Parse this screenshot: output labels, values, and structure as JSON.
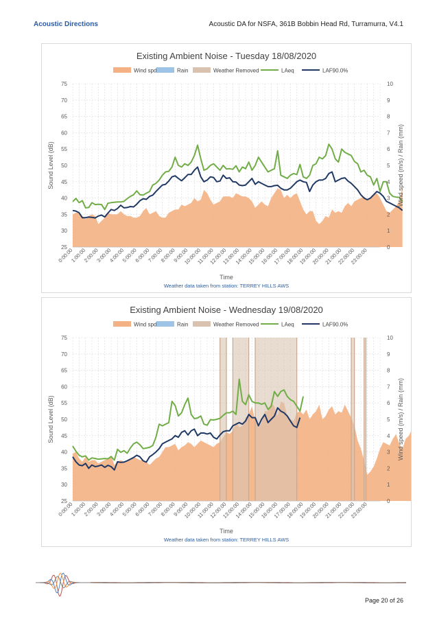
{
  "header": {
    "brand": "Acoustic Directions",
    "doc_title": "Acoustic DA for NSFA, 361B Bobbin Head Rd, Turramurra, V4.1"
  },
  "footer": {
    "page": "Page 20 of 26"
  },
  "colors": {
    "wind": "#f4b183",
    "rain": "#9dc3e6",
    "weather_removed": "#d9c3b0",
    "laeq": "#70ad47",
    "laf90": "#1f3864"
  },
  "chart_data": [
    {
      "type": "line",
      "title": "Existing Ambient Noise - Tuesday 18/08/2020",
      "xlabel": "Time",
      "ylabel": "Sound Level (dB)",
      "y2label": "Wind speed (m/s) / Rain (mm)",
      "ylim": [
        25,
        75
      ],
      "y2lim": [
        0,
        10
      ],
      "yticks": [
        "25",
        "30",
        "35",
        "40",
        "45",
        "50",
        "55",
        "60",
        "65",
        "70",
        "75"
      ],
      "y2ticks": [
        "0",
        "1",
        "2",
        "3",
        "4",
        "5",
        "6",
        "7",
        "8",
        "9",
        "10"
      ],
      "xticks": [
        "0:00:00",
        "1:00:00",
        "2:00:00",
        "3:00:00",
        "4:00:00",
        "5:00:00",
        "6:00:00",
        "7:00:00",
        "8:00:00",
        "9:00:00",
        "10:00:00",
        "11:00:00",
        "12:00:00",
        "13:00:00",
        "14:00:00",
        "15:00:00",
        "16:00:00",
        "17:00:00",
        "18:00:00",
        "19:00:00",
        "20:00:00",
        "21:00:00",
        "22:00:00",
        "23:00:00"
      ],
      "legend": [
        "Wind spd",
        "Rain",
        "Weather Removed",
        "LAeq",
        "LAF90.0%"
      ],
      "legend_position": "top",
      "grid": true,
      "note": "Weather data taken from station: TERREY HILLS AWS",
      "interval_hours": 0.25,
      "weather_removed_hours": [],
      "series": [
        {
          "name": "LAeq",
          "values": [
            38.9,
            39.9,
            38.6,
            39.2,
            37.0,
            37.1,
            38.6,
            38.0,
            38.1,
            38.0,
            36.5,
            38.4,
            38.6,
            38.7,
            38.8,
            38.8,
            39.0,
            39.8,
            40.5,
            41.0,
            42.2,
            41.0,
            40.9,
            41.5,
            42.0,
            44.0,
            44.5,
            45.5,
            47.0,
            48.0,
            48.2,
            49.5,
            52.5,
            50.0,
            49.5,
            50.5,
            50.0,
            51.0,
            53.0,
            56.2,
            52.0,
            48.5,
            49.0,
            50.0,
            50.5,
            49.5,
            48.5,
            50.0,
            48.9,
            49.0,
            48.8,
            49.9,
            48.0,
            49.5,
            49.0,
            51.0,
            48.5,
            50.0,
            52.5,
            51.0,
            49.5,
            48.0,
            48.5,
            49.0,
            54.5,
            47.0,
            46.5,
            46.0,
            47.0,
            47.5,
            47.2,
            50.3,
            46.5,
            46.0,
            47.0,
            50.0,
            50.5,
            52.5,
            52.0,
            53.0,
            56.5,
            55.0,
            52.0,
            51.0,
            55.0,
            54.0,
            53.5,
            53.0,
            51.2,
            50.5,
            48.0,
            48.5,
            47.0,
            46.5,
            44.0,
            46.0,
            42.0,
            45.0,
            45.0,
            41.5,
            40.5,
            40.3,
            40.2,
            38.9
          ]
        },
        {
          "name": "LAF90.0%",
          "values": [
            36.2,
            36.0,
            35.5,
            34.0,
            34.0,
            34.2,
            34.1,
            33.9,
            34.5,
            34.8,
            34.2,
            35.4,
            36.5,
            36.2,
            36.8,
            37.8,
            37.0,
            37.1,
            37.4,
            37.3,
            38.1,
            39.2,
            39.8,
            39.6,
            40.5,
            40.9,
            42.0,
            43.0,
            44.0,
            44.2,
            45.2,
            46.5,
            46.8,
            46.0,
            45.3,
            46.2,
            47.2,
            47.2,
            48.5,
            49.5,
            46.5,
            45.0,
            45.5,
            46.5,
            46.3,
            45.0,
            45.2,
            47.0,
            46.0,
            46.2,
            45.0,
            44.9,
            44.0,
            43.8,
            44.0,
            45.0,
            46.0,
            44.2,
            45.0,
            44.5,
            44.0,
            43.5,
            43.5,
            43.8,
            43.9,
            43.0,
            42.5,
            42.5,
            43.0,
            44.0,
            45.0,
            45.5,
            45.0,
            44.8,
            42.0,
            44.0,
            45.0,
            45.5,
            45.5,
            46.0,
            47.5,
            48.0,
            45.0,
            45.5,
            46.0,
            46.2,
            45.2,
            44.5,
            43.5,
            42.5,
            41.0,
            40.0,
            39.5,
            40.0,
            41.0,
            42.0,
            41.5,
            40.5,
            39.0,
            38.5,
            38.0,
            37.5,
            37.0,
            36.2
          ]
        },
        {
          "name": "Wind spd",
          "values": [
            2.0,
            2.1,
            2.1,
            1.9,
            1.7,
            1.9,
            2.0,
            1.9,
            1.4,
            1.6,
            1.8,
            2.1,
            2.0,
            2.0,
            2.0,
            2.2,
            2.0,
            1.9,
            1.9,
            1.8,
            1.8,
            1.9,
            2.2,
            2.4,
            2.0,
            2.1,
            2.2,
            1.9,
            1.8,
            1.8,
            2.1,
            2.2,
            2.3,
            2.3,
            2.6,
            2.5,
            2.6,
            2.7,
            3.0,
            2.8,
            2.9,
            3.5,
            3.3,
            2.9,
            2.6,
            2.7,
            2.8,
            3.1,
            3.1,
            3.1,
            3.0,
            3.3,
            3.2,
            3.1,
            3.1,
            3.0,
            2.8,
            2.4,
            2.6,
            2.8,
            2.6,
            2.5,
            3.0,
            3.3,
            3.6,
            3.5,
            3.0,
            3.2,
            3.0,
            3.2,
            3.3,
            2.8,
            2.3,
            2.0,
            2.2,
            2.2,
            1.6,
            1.4,
            1.6,
            1.9,
            1.8,
            2.3,
            2.1,
            2.2,
            2.1,
            2.5,
            2.7,
            2.5,
            2.8,
            2.9,
            3.0,
            3.1,
            2.9,
            3.0,
            3.2,
            3.3,
            3.0,
            2.6,
            2.2,
            2.1,
            2.3,
            2.5,
            2.8,
            3.7
          ]
        },
        {
          "name": "Rain",
          "values": []
        },
        {
          "name": "Weather Removed",
          "values": []
        }
      ]
    },
    {
      "type": "line",
      "title": "Existing Ambient Noise - Wednesday 19/08/2020",
      "xlabel": "Time",
      "ylabel": "Sound Level (dB)",
      "y2label": "Wind speed (m/s) / Rain (mm)",
      "ylim": [
        25,
        75
      ],
      "y2lim": [
        0,
        10
      ],
      "yticks": [
        "25",
        "30",
        "35",
        "40",
        "45",
        "50",
        "55",
        "60",
        "65",
        "70",
        "75"
      ],
      "y2ticks": [
        "0",
        "1",
        "2",
        "3",
        "4",
        "5",
        "6",
        "7",
        "8",
        "9",
        "10"
      ],
      "xticks": [
        "0:00:00",
        "1:00:00",
        "2:00:00",
        "3:00:00",
        "4:00:00",
        "5:00:00",
        "6:00:00",
        "7:00:00",
        "8:00:00",
        "9:00:00",
        "10:00:00",
        "11:00:00",
        "12:00:00",
        "13:00:00",
        "14:00:00",
        "15:00:00",
        "16:00:00",
        "17:00:00",
        "18:00:00",
        "19:00:00",
        "20:00:00",
        "21:00:00",
        "22:00:00",
        "23:00:00"
      ],
      "legend": [
        "Wind spd",
        "Rain",
        "Weather Removed",
        "LAeq",
        "LAF90.0%"
      ],
      "legend_position": "top",
      "grid": true,
      "note": "Weather data taken from station: TERREY HILLS AWS",
      "interval_hours": 0.25,
      "weather_removed_hours": [
        [
          11.5,
          12.0
        ],
        [
          12.5,
          13.75
        ],
        [
          14.25,
          17.5
        ],
        [
          21.75,
          22.0
        ],
        [
          22.75,
          22.9
        ]
      ],
      "series": [
        {
          "name": "LAeq",
          "values": [
            41.8,
            40.2,
            39.0,
            38.5,
            38.8,
            37.5,
            38.2,
            38.0,
            37.8,
            37.9,
            38.0,
            37.9,
            38.6,
            37.5,
            40.8,
            39.9,
            40.4,
            39.6,
            41.2,
            42.5,
            43.0,
            42.2,
            41.0,
            41.2,
            41.4,
            42.0,
            44.5,
            48.5,
            48.0,
            48.5,
            49.0,
            55.5,
            54.2,
            51.0,
            52.0,
            54.5,
            56.5,
            51.5,
            50.2,
            50.4,
            51.0,
            48.5,
            48.2,
            49.9,
            49.8,
            50.0,
            50.3,
            51.2,
            52.0,
            52.0,
            52.5,
            51.5,
            62.3,
            55.5,
            54.5,
            57.5,
            55.5,
            55.0,
            55.0,
            54.6,
            55.0,
            53.0,
            54.0,
            58.5,
            57.0,
            58.5,
            59.0,
            57.0,
            56.0,
            55.5,
            54.0,
            52.5,
            57.0
          ]
        },
        {
          "name": "LAF90.0%",
          "values": [
            38.5,
            37.0,
            36.0,
            35.8,
            36.5,
            35.0,
            36.0,
            35.5,
            35.7,
            36.0,
            35.3,
            35.9,
            35.5,
            34.5,
            37.0,
            36.8,
            36.9,
            37.3,
            37.8,
            38.3,
            39.0,
            38.5,
            37.3,
            36.9,
            38.5,
            39.2,
            40.0,
            41.0,
            42.5,
            43.0,
            43.5,
            44.0,
            45.0,
            44.5,
            46.0,
            46.5,
            45.2,
            46.5,
            47.0,
            45.0,
            45.8,
            45.8,
            45.5,
            45.8,
            44.5,
            44.0,
            45.2,
            46.2,
            46.5,
            46.5,
            48.0,
            48.5,
            49.0,
            48.5,
            49.5,
            51.5,
            50.5,
            50.5,
            48.0,
            50.0,
            51.5,
            49.0,
            50.0,
            51.0,
            53.5,
            52.5,
            52.0,
            51.0,
            49.5,
            48.0,
            47.5,
            50.5
          ]
        },
        {
          "name": "Wind spd",
          "values": [
            2.9,
            3.0,
            2.6,
            2.4,
            2.7,
            2.4,
            2.5,
            2.5,
            2.3,
            2.4,
            2.5,
            2.6,
            2.8,
            2.2,
            2.4,
            2.5,
            2.4,
            2.5,
            2.6,
            2.7,
            2.6,
            2.5,
            2.5,
            2.4,
            2.2,
            2.4,
            2.6,
            2.7,
            3.0,
            3.3,
            3.3,
            3.4,
            3.5,
            3.1,
            3.3,
            3.4,
            3.6,
            3.5,
            3.3,
            3.5,
            3.7,
            3.6,
            3.5,
            3.4,
            3.3,
            3.5,
            3.6,
            3.9,
            4.2,
            4.1,
            4.3,
            4.8,
            4.5,
            4.6,
            5.1,
            5.3,
            5.8,
            4.9,
            4.5,
            4.8,
            5.5,
            5.5,
            6.0,
            5.8,
            5.2,
            6.1,
            6.0,
            5.2,
            5.0,
            4.9,
            5.4,
            5.5,
            5.3,
            5.6,
            5.0,
            5.3,
            5.5,
            5.9,
            5.0,
            5.2,
            5.6,
            5.8,
            5.3,
            5.5,
            5.4,
            5.9,
            5.5,
            5.1,
            4.6,
            3.7,
            3.2,
            2.5,
            1.6,
            1.8,
            2.1,
            2.6,
            3.2,
            3.6,
            3.5,
            3.4,
            3.8,
            4.1,
            3.5,
            3.2,
            3.8,
            4.0,
            4.4,
            4.9,
            4.5,
            4.2,
            4.8,
            5.0,
            5.3,
            4.8,
            4.7,
            4.4,
            5.0,
            5.5,
            6.0,
            5.2,
            4.5,
            4.0,
            4.3,
            4.7,
            4.9,
            4.6,
            4.5,
            4.4,
            3.8,
            3.0,
            2.9,
            4.2
          ]
        },
        {
          "name": "Rain",
          "values": []
        },
        {
          "name": "Weather Removed",
          "values": []
        }
      ]
    }
  ]
}
